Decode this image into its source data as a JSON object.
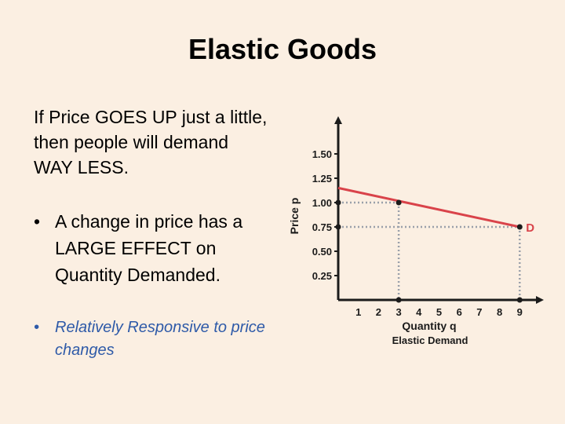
{
  "slide": {
    "title": "Elastic Goods",
    "intro": "If Price GOES UP just a little, then people will demand WAY LESS.",
    "bullets": [
      {
        "text": "A change in price has a LARGE EFFECT on Quantity Demanded."
      },
      {
        "text": "Relatively Responsive to price changes"
      }
    ],
    "bullet_char": "•"
  },
  "colors": {
    "background": "#fbefe2",
    "curve": "#d9434a",
    "guide": "#9aa0aa",
    "subbullet": "#2e5aa8"
  },
  "chart_data": {
    "type": "line",
    "title": "",
    "xlabel": "Quantity q",
    "ylabel": "Price p",
    "caption": "Elastic Demand",
    "series_label": "D",
    "x_ticks": [
      1,
      2,
      3,
      4,
      5,
      6,
      7,
      8,
      9
    ],
    "x_tick_labels": [
      "1",
      "2",
      "3",
      "4",
      "5",
      "6",
      "7",
      "8",
      "9"
    ],
    "y_ticks": [
      0.25,
      0.5,
      0.75,
      1.0,
      1.25,
      1.5
    ],
    "y_tick_labels": [
      "0.25",
      "0.50",
      "0.75",
      "1.00",
      "1.25",
      "1.50"
    ],
    "xlim": [
      0,
      10
    ],
    "ylim": [
      0,
      1.75
    ],
    "series": [
      {
        "points": [
          [
            0,
            1.15
          ],
          [
            9,
            0.75
          ]
        ]
      }
    ],
    "highlight_points": [
      [
        3,
        1.0
      ],
      [
        9,
        0.75
      ]
    ],
    "grid": false
  }
}
